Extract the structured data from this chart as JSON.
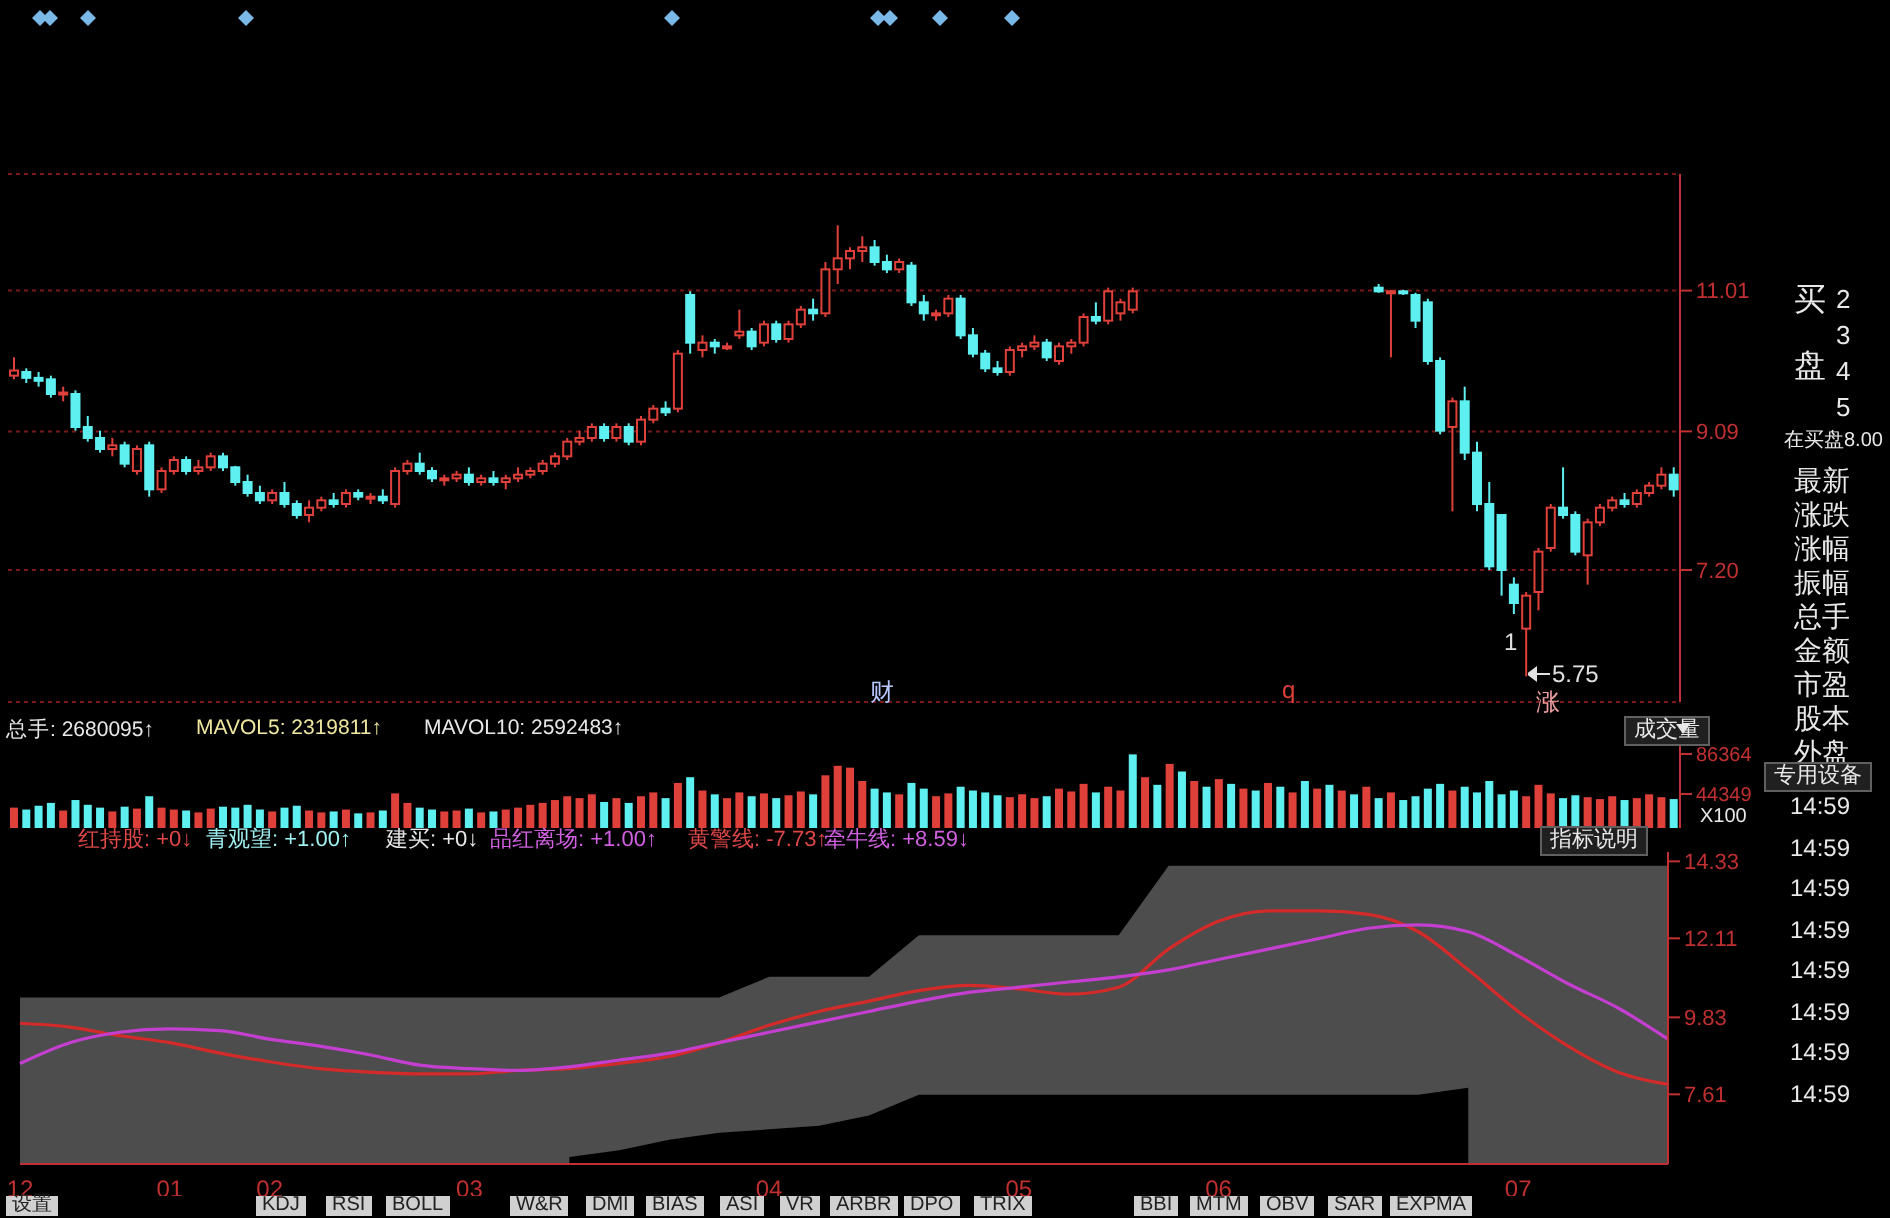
{
  "chart_data": [
    {
      "type": "candlestick",
      "categories": [
        null,
        null,
        null,
        null,
        null,
        null,
        null,
        null,
        null,
        null,
        null,
        null,
        null,
        null,
        null,
        null,
        null,
        null,
        null,
        null,
        null,
        null,
        null,
        null,
        null,
        null,
        null,
        null,
        null,
        null,
        null,
        null,
        null,
        null,
        null,
        null,
        null,
        null,
        null,
        null,
        null,
        null,
        null,
        null,
        null,
        null,
        null,
        null,
        null,
        null,
        null,
        null,
        null,
        null,
        null,
        null,
        null,
        null,
        null,
        null,
        null,
        null,
        null,
        null,
        null,
        null,
        null,
        null,
        null,
        null,
        null,
        null,
        null,
        null,
        null,
        null,
        null,
        null,
        null,
        null,
        null,
        null,
        null,
        null,
        null,
        null,
        null,
        null,
        null,
        null,
        null,
        null,
        null,
        null,
        null,
        null,
        null,
        null,
        null,
        null,
        null,
        null,
        null,
        null,
        null,
        null,
        null,
        null,
        null,
        null,
        null,
        null,
        null,
        null,
        null,
        null,
        null,
        null,
        null,
        null,
        null,
        null,
        null,
        null,
        null,
        null,
        null,
        null,
        null,
        null,
        null,
        null,
        null,
        null,
        null,
        null
      ],
      "ohlc": [
        [
          9.85,
          10.1,
          9.8,
          9.92
        ],
        [
          9.9,
          9.95,
          9.75,
          9.82
        ],
        [
          9.82,
          9.9,
          9.7,
          9.78
        ],
        [
          9.8,
          9.85,
          9.55,
          9.6
        ],
        [
          9.6,
          9.7,
          9.5,
          9.62
        ],
        [
          9.6,
          9.65,
          9.1,
          9.15
        ],
        [
          9.15,
          9.3,
          8.95,
          9.0
        ],
        [
          9.0,
          9.1,
          8.8,
          8.85
        ],
        [
          8.85,
          9.0,
          8.75,
          8.9
        ],
        [
          8.9,
          8.95,
          8.6,
          8.65
        ],
        [
          8.55,
          8.9,
          8.5,
          8.85
        ],
        [
          8.9,
          8.95,
          8.2,
          8.3
        ],
        [
          8.3,
          8.6,
          8.25,
          8.55
        ],
        [
          8.55,
          8.75,
          8.5,
          8.7
        ],
        [
          8.7,
          8.75,
          8.5,
          8.55
        ],
        [
          8.55,
          8.7,
          8.5,
          8.6
        ],
        [
          8.6,
          8.8,
          8.55,
          8.75
        ],
        [
          8.75,
          8.8,
          8.55,
          8.6
        ],
        [
          8.6,
          8.62,
          8.35,
          8.4
        ],
        [
          8.4,
          8.5,
          8.2,
          8.25
        ],
        [
          8.25,
          8.35,
          8.1,
          8.15
        ],
        [
          8.15,
          8.3,
          8.1,
          8.25
        ],
        [
          8.25,
          8.4,
          8.05,
          8.1
        ],
        [
          8.1,
          8.15,
          7.9,
          7.95
        ],
        [
          7.95,
          8.15,
          7.85,
          8.05
        ],
        [
          8.05,
          8.2,
          8.0,
          8.15
        ],
        [
          8.15,
          8.25,
          8.05,
          8.1
        ],
        [
          8.1,
          8.3,
          8.05,
          8.25
        ],
        [
          8.25,
          8.3,
          8.15,
          8.2
        ],
        [
          8.2,
          8.25,
          8.1,
          8.2
        ],
        [
          8.2,
          8.3,
          8.1,
          8.15
        ],
        [
          8.1,
          8.6,
          8.05,
          8.55
        ],
        [
          8.55,
          8.7,
          8.5,
          8.65
        ],
        [
          8.65,
          8.8,
          8.5,
          8.55
        ],
        [
          8.55,
          8.6,
          8.4,
          8.45
        ],
        [
          8.45,
          8.5,
          8.35,
          8.45
        ],
        [
          8.45,
          8.55,
          8.4,
          8.5
        ],
        [
          8.5,
          8.6,
          8.35,
          8.4
        ],
        [
          8.4,
          8.5,
          8.35,
          8.45
        ],
        [
          8.45,
          8.55,
          8.35,
          8.4
        ],
        [
          8.4,
          8.5,
          8.3,
          8.45
        ],
        [
          8.45,
          8.6,
          8.4,
          8.5
        ],
        [
          8.5,
          8.6,
          8.45,
          8.55
        ],
        [
          8.55,
          8.7,
          8.5,
          8.65
        ],
        [
          8.65,
          8.8,
          8.6,
          8.75
        ],
        [
          8.75,
          9.0,
          8.7,
          8.95
        ],
        [
          8.95,
          9.1,
          8.9,
          9.0
        ],
        [
          9.0,
          9.2,
          8.95,
          9.15
        ],
        [
          9.15,
          9.2,
          8.95,
          9.0
        ],
        [
          9.0,
          9.2,
          8.95,
          9.15
        ],
        [
          9.15,
          9.2,
          8.9,
          8.95
        ],
        [
          8.95,
          9.3,
          8.9,
          9.25
        ],
        [
          9.25,
          9.45,
          9.2,
          9.4
        ],
        [
          9.4,
          9.5,
          9.3,
          9.35
        ],
        [
          9.4,
          10.2,
          9.35,
          10.15
        ],
        [
          10.95,
          11.0,
          10.15,
          10.3
        ],
        [
          10.2,
          10.4,
          10.1,
          10.3
        ],
        [
          10.3,
          10.35,
          10.15,
          10.25
        ],
        [
          10.25,
          10.3,
          10.2,
          10.25
        ],
        [
          10.4,
          10.75,
          10.35,
          10.45
        ],
        [
          10.45,
          10.5,
          10.2,
          10.25
        ],
        [
          10.3,
          10.6,
          10.25,
          10.55
        ],
        [
          10.55,
          10.6,
          10.3,
          10.35
        ],
        [
          10.35,
          10.6,
          10.3,
          10.55
        ],
        [
          10.55,
          10.8,
          10.5,
          10.75
        ],
        [
          10.75,
          10.9,
          10.6,
          10.7
        ],
        [
          10.7,
          11.4,
          10.65,
          11.3
        ],
        [
          11.3,
          11.9,
          11.1,
          11.45
        ],
        [
          11.45,
          11.6,
          11.3,
          11.55
        ],
        [
          11.55,
          11.75,
          11.4,
          11.6
        ],
        [
          11.6,
          11.7,
          11.35,
          11.4
        ],
        [
          11.4,
          11.5,
          11.25,
          11.3
        ],
        [
          11.3,
          11.45,
          11.25,
          11.4
        ],
        [
          11.35,
          11.4,
          10.8,
          10.85
        ],
        [
          10.85,
          10.95,
          10.6,
          10.7
        ],
        [
          10.7,
          10.75,
          10.6,
          10.7
        ],
        [
          10.7,
          10.95,
          10.65,
          10.9
        ],
        [
          10.9,
          10.95,
          10.35,
          10.4
        ],
        [
          10.4,
          10.5,
          10.1,
          10.15
        ],
        [
          10.15,
          10.2,
          9.9,
          9.95
        ],
        [
          9.95,
          10.05,
          9.85,
          9.9
        ],
        [
          9.9,
          10.25,
          9.85,
          10.2
        ],
        [
          10.2,
          10.3,
          10.1,
          10.25
        ],
        [
          10.25,
          10.4,
          10.2,
          10.3
        ],
        [
          10.3,
          10.35,
          10.05,
          10.1
        ],
        [
          10.05,
          10.3,
          10.0,
          10.25
        ],
        [
          10.25,
          10.35,
          10.15,
          10.3
        ],
        [
          10.3,
          10.7,
          10.25,
          10.65
        ],
        [
          10.65,
          10.85,
          10.55,
          10.6
        ],
        [
          10.6,
          11.05,
          10.55,
          11.0
        ],
        [
          10.7,
          10.9,
          10.6,
          10.85
        ],
        [
          10.75,
          11.05,
          10.7,
          11.0
        ],
        null,
        null,
        null,
        null,
        null,
        null,
        null,
        null,
        null,
        null,
        null,
        null,
        null,
        null,
        null,
        null,
        null,
        null,
        null,
        [
          11.05,
          11.1,
          10.98,
          11.0
        ],
        [
          10.98,
          11.02,
          10.1,
          11.0
        ],
        [
          11.0,
          11.02,
          10.95,
          10.98
        ],
        [
          10.95,
          10.98,
          10.5,
          10.6
        ],
        [
          10.85,
          10.9,
          10.0,
          10.05
        ],
        [
          10.05,
          10.1,
          9.05,
          9.1
        ],
        [
          9.15,
          9.55,
          8.0,
          9.5
        ],
        [
          9.5,
          9.7,
          8.7,
          8.8
        ],
        [
          8.8,
          8.95,
          8.0,
          8.1
        ],
        [
          8.1,
          8.4,
          7.2,
          7.25
        ],
        [
          7.95,
          7.95,
          6.85,
          7.2
        ],
        [
          7.0,
          7.1,
          6.6,
          6.75
        ],
        [
          6.4,
          6.9,
          5.75,
          6.85
        ],
        [
          6.9,
          7.5,
          6.65,
          7.45
        ],
        [
          7.5,
          8.1,
          7.45,
          8.05
        ],
        [
          8.05,
          8.6,
          7.9,
          7.95
        ],
        [
          7.95,
          8.0,
          7.4,
          7.45
        ],
        [
          7.4,
          7.9,
          7.0,
          7.85
        ],
        [
          7.85,
          8.1,
          7.8,
          8.05
        ],
        [
          8.05,
          8.2,
          8.0,
          8.15
        ],
        [
          8.15,
          8.25,
          8.05,
          8.1
        ],
        [
          8.1,
          8.3,
          8.05,
          8.25
        ],
        [
          8.25,
          8.4,
          8.2,
          8.35
        ],
        [
          8.35,
          8.6,
          8.3,
          8.5
        ],
        [
          8.5,
          8.6,
          8.2,
          8.3
        ]
      ],
      "colors": [
        "#e0403a",
        "#5ef0f0",
        "#5ef0f0",
        "#5ef0f0",
        "#e0403a",
        "#5ef0f0",
        "#5ef0f0",
        "#5ef0f0",
        "#e0403a",
        "#5ef0f0",
        "#e0403a",
        "#5ef0f0",
        "#e0403a",
        "#e0403a",
        "#5ef0f0",
        "#e0403a",
        "#e0403a",
        "#5ef0f0",
        "#5ef0f0",
        "#5ef0f0",
        "#5ef0f0",
        "#e0403a",
        "#5ef0f0",
        "#5ef0f0",
        "#e0403a",
        "#e0403a",
        "#5ef0f0",
        "#e0403a",
        "#5ef0f0",
        "#e0403a",
        "#5ef0f0",
        "#e0403a",
        "#e0403a",
        "#5ef0f0",
        "#5ef0f0",
        "#e0403a",
        "#e0403a",
        "#5ef0f0",
        "#e0403a",
        "#5ef0f0",
        "#e0403a",
        "#e0403a",
        "#e0403a",
        "#e0403a",
        "#e0403a",
        "#e0403a",
        "#e0403a",
        "#e0403a",
        "#5ef0f0",
        "#e0403a",
        "#5ef0f0",
        "#e0403a",
        "#e0403a",
        "#5ef0f0",
        "#e0403a",
        "#5ef0f0",
        "#e0403a",
        "#5ef0f0",
        "#e0403a",
        "#e0403a",
        "#5ef0f0",
        "#e0403a",
        "#5ef0f0",
        "#e0403a",
        "#e0403a",
        "#5ef0f0",
        "#e0403a",
        "#e0403a",
        "#e0403a",
        "#e0403a",
        "#5ef0f0",
        "#5ef0f0",
        "#e0403a",
        "#5ef0f0",
        "#5ef0f0",
        "#e0403a",
        "#e0403a",
        "#5ef0f0",
        "#5ef0f0",
        "#5ef0f0",
        "#5ef0f0",
        "#e0403a",
        "#e0403a",
        "#e0403a",
        "#5ef0f0",
        "#e0403a",
        "#e0403a",
        "#e0403a",
        "#5ef0f0",
        "#e0403a",
        "#e0403a",
        "#e0403a",
        null,
        null,
        null,
        null,
        null,
        null,
        null,
        null,
        null,
        null,
        null,
        null,
        null,
        null,
        null,
        null,
        null,
        null,
        null,
        "#5ef0f0",
        "#e0403a",
        "#5ef0f0",
        "#5ef0f0",
        "#5ef0f0",
        "#5ef0f0",
        "#e0403a",
        "#5ef0f0",
        "#5ef0f0",
        "#5ef0f0",
        "#5ef0f0",
        "#5ef0f0",
        "#e0403a",
        "#e0403a",
        "#e0403a",
        "#5ef0f0",
        "#5ef0f0",
        "#e0403a",
        "#e0403a",
        "#e0403a",
        "#5ef0f0",
        "#e0403a",
        "#e0403a",
        "#e0403a",
        "#5ef0f0"
      ],
      "ylim": [
        5.4,
        12.6
      ],
      "yticks": [
        {
          "value": 7.2,
          "label": "7.20"
        },
        9.09,
        11.01
      ],
      "grid": "y",
      "tick_labels": "y",
      "annotations": [
        "1",
        "5.75",
        "财",
        "q",
        "涨"
      ]
    },
    {
      "type": "bar",
      "categories": [
        null,
        null,
        null,
        null,
        null,
        null,
        null,
        null,
        null,
        null,
        null,
        null,
        null,
        null,
        null,
        null,
        null,
        null,
        null,
        null,
        null,
        null,
        null,
        null,
        null,
        null,
        null,
        null,
        null,
        null,
        null,
        null,
        null,
        null,
        null,
        null,
        null,
        null,
        null,
        null,
        null,
        null,
        null,
        null,
        null,
        null,
        null,
        null,
        null,
        null,
        null,
        null,
        null,
        null,
        null,
        null,
        null,
        null,
        null,
        null,
        null,
        null,
        null,
        null,
        null,
        null,
        null,
        null,
        null,
        null,
        null,
        null,
        null,
        null,
        null,
        null,
        null,
        null,
        null,
        null,
        null,
        null,
        null,
        null,
        null,
        null,
        null,
        null,
        null,
        null,
        null,
        null,
        null,
        null,
        null,
        null,
        null,
        null,
        null,
        null,
        null,
        null,
        null,
        null,
        null,
        null,
        null,
        null,
        null,
        null,
        null,
        null,
        null,
        null,
        null,
        null,
        null,
        null,
        null,
        null,
        null,
        null,
        null,
        null,
        null,
        null,
        null,
        null,
        null,
        null,
        null,
        null,
        null,
        null,
        null,
        null
      ],
      "values": [
        30000,
        28000,
        32000,
        35000,
        27000,
        38000,
        33000,
        30000,
        26000,
        31000,
        29000,
        42000,
        30000,
        28000,
        27000,
        25000,
        29000,
        31000,
        30000,
        33000,
        28000,
        26000,
        30000,
        32000,
        27000,
        25000,
        26000,
        28000,
        24000,
        25000,
        27000,
        45000,
        35000,
        30000,
        28000,
        26000,
        27000,
        29000,
        25000,
        26000,
        28000,
        30000,
        33000,
        35000,
        38000,
        42000,
        40000,
        44000,
        36000,
        40000,
        35000,
        42000,
        46000,
        40000,
        56000,
        62000,
        48000,
        44000,
        40000,
        46000,
        42000,
        45000,
        40000,
        43000,
        47000,
        44000,
        64000,
        74000,
        72000,
        58000,
        50000,
        46000,
        44000,
        56000,
        50000,
        42000,
        45000,
        52000,
        48000,
        46000,
        43000,
        41000,
        44000,
        40000,
        42000,
        50000,
        47000,
        55000,
        46000,
        52000,
        48000,
        86000,
        62000,
        54000,
        76000,
        68000,
        58000,
        52000,
        60000,
        55000,
        50000,
        48000,
        56000,
        52000,
        46000,
        58000,
        50000,
        54000,
        48000,
        44000,
        52000,
        40000,
        46000,
        38000,
        42000,
        50000,
        55000,
        48000,
        52000,
        46000,
        58000,
        44000,
        48000,
        42000,
        54000,
        45000,
        40000,
        43000,
        41000,
        39000,
        42000,
        38000,
        40000,
        44000,
        41000,
        39000
      ],
      "colors": [
        "#e0403a",
        "#5ef0f0",
        "#5ef0f0",
        "#5ef0f0",
        "#e0403a",
        "#5ef0f0",
        "#5ef0f0",
        "#5ef0f0",
        "#e0403a",
        "#5ef0f0",
        "#e0403a",
        "#5ef0f0",
        "#e0403a",
        "#e0403a",
        "#5ef0f0",
        "#e0403a",
        "#e0403a",
        "#5ef0f0",
        "#5ef0f0",
        "#5ef0f0",
        "#5ef0f0",
        "#e0403a",
        "#5ef0f0",
        "#5ef0f0",
        "#e0403a",
        "#e0403a",
        "#5ef0f0",
        "#e0403a",
        "#5ef0f0",
        "#e0403a",
        "#5ef0f0",
        "#e0403a",
        "#e0403a",
        "#5ef0f0",
        "#5ef0f0",
        "#e0403a",
        "#e0403a",
        "#5ef0f0",
        "#e0403a",
        "#5ef0f0",
        "#e0403a",
        "#e0403a",
        "#e0403a",
        "#e0403a",
        "#e0403a",
        "#e0403a",
        "#e0403a",
        "#e0403a",
        "#5ef0f0",
        "#e0403a",
        "#5ef0f0",
        "#e0403a",
        "#e0403a",
        "#5ef0f0",
        "#e0403a",
        "#5ef0f0",
        "#e0403a",
        "#5ef0f0",
        "#e0403a",
        "#e0403a",
        "#5ef0f0",
        "#e0403a",
        "#5ef0f0",
        "#e0403a",
        "#e0403a",
        "#5ef0f0",
        "#e0403a",
        "#e0403a",
        "#e0403a",
        "#e0403a",
        "#5ef0f0",
        "#5ef0f0",
        "#e0403a",
        "#5ef0f0",
        "#5ef0f0",
        "#e0403a",
        "#e0403a",
        "#5ef0f0",
        "#5ef0f0",
        "#5ef0f0",
        "#5ef0f0",
        "#e0403a",
        "#e0403a",
        "#e0403a",
        "#5ef0f0",
        "#e0403a",
        "#e0403a",
        "#e0403a",
        "#5ef0f0",
        "#e0403a",
        "#e0403a",
        "#5ef0f0",
        "#e0403a",
        "#5ef0f0",
        "#e0403a",
        "#5ef0f0",
        "#e0403a",
        "#5ef0f0",
        "#e0403a",
        "#5ef0f0",
        "#e0403a",
        "#5ef0f0",
        "#e0403a",
        "#5ef0f0",
        "#e0403a",
        "#5ef0f0",
        "#e0403a",
        "#5ef0f0",
        "#e0403a",
        "#5ef0f0",
        "#e0403a",
        "#5ef0f0",
        "#e0403a",
        "#5ef0f0",
        "#5ef0f0",
        "#5ef0f0",
        "#5ef0f0",
        "#e0403a",
        "#5ef0f0",
        "#5ef0f0",
        "#5ef0f0",
        "#5ef0f0",
        "#5ef0f0",
        "#e0403a",
        "#e0403a",
        "#e0403a",
        "#5ef0f0",
        "#5ef0f0",
        "#e0403a",
        "#e0403a",
        "#e0403a",
        "#5ef0f0",
        "#e0403a",
        "#e0403a",
        "#e0403a",
        "#5ef0f0"
      ],
      "ylim": [
        8600,
        96900
      ],
      "yticks": [
        44349,
        86364
      ],
      "ylabel": "X100",
      "tick_labels": "y",
      "annotations": [
        "总手: 2680095↑",
        "MAVOL5: 2319811↑",
        "MAVOL10: 2592483↑"
      ]
    },
    {
      "type": "line",
      "categories": [
        "12",
        null,
        null,
        "01",
        null,
        "02",
        null,
        null,
        null,
        "03",
        null,
        null,
        null,
        null,
        null,
        "04",
        null,
        null,
        null,
        null,
        "05",
        null,
        null,
        null,
        "06",
        null,
        null,
        null,
        null,
        null,
        "07",
        null,
        null,
        null
      ],
      "series": [
        {
          "type": "area",
          "color": "#4d4d4d",
          "values": [
            10.4,
            10.4,
            10.4,
            10.4,
            10.4,
            10.4,
            10.4,
            10.4,
            10.4,
            10.4,
            10.4,
            10.4,
            10.4,
            10.4,
            10.4,
            11.0,
            11.0,
            11.0,
            12.2,
            12.2,
            12.2,
            12.2,
            12.2,
            14.2,
            14.2,
            14.2,
            14.2,
            14.2,
            14.2,
            14.2,
            14.2,
            14.2,
            14.2,
            14.2
          ]
        },
        {
          "type": "area",
          "color": "#000000",
          "values": [
            null,
            null,
            null,
            null,
            null,
            null,
            null,
            null,
            null,
            null,
            null,
            5.8,
            6.0,
            6.3,
            6.5,
            6.6,
            6.7,
            7.0,
            7.6,
            7.6,
            7.6,
            7.6,
            7.6,
            7.6,
            7.6,
            7.6,
            7.6,
            7.6,
            7.6,
            7.8,
            null,
            null,
            null,
            null
          ]
        },
        {
          "color": "#d42a2a",
          "values": [
            9.66,
            9.55,
            9.3,
            9.1,
            8.8,
            8.55,
            8.35,
            8.25,
            8.2,
            8.2,
            8.3,
            8.35,
            8.5,
            8.7,
            9.1,
            9.6,
            10.0,
            10.3,
            10.6,
            10.75,
            10.65,
            10.5,
            10.7,
            11.8,
            12.6,
            12.9,
            12.9,
            12.8,
            12.3,
            11.2,
            10.0,
            9.0,
            8.25,
            7.9
          ]
        },
        {
          "color": "#c43fd0",
          "values": [
            8.5,
            9.1,
            9.4,
            9.5,
            9.45,
            9.2,
            9.0,
            8.75,
            8.45,
            8.35,
            8.3,
            8.4,
            8.6,
            8.8,
            9.1,
            9.4,
            9.7,
            10.0,
            10.3,
            10.55,
            10.7,
            10.85,
            11.0,
            11.2,
            11.5,
            11.8,
            12.1,
            12.4,
            12.5,
            12.3,
            11.6,
            10.8,
            10.1,
            9.2
          ]
        }
      ],
      "ylim": [
        5.6,
        14.6
      ],
      "yticks": [
        7.61,
        9.83,
        12.11,
        14.33
      ],
      "annotations": [
        "红持股: +0↓",
        "青观望: +1.00↑",
        "建买: +0↓",
        "品红离场: +1.00↑",
        "黄警线: -7.73↑",
        "牵牛线: +8.59↓"
      ]
    },
    {
      "type": "other",
      "annotations": [
        "买",
        "盘",
        "2",
        "3",
        "4",
        "5",
        "在买盘8.00",
        "最新",
        "涨跌",
        "涨幅",
        "振幅",
        "总手",
        "金额",
        "市盈",
        "股本",
        "外盘",
        "成交量",
        "专用设备",
        "指标说明",
        "14:59",
        "14:59",
        "14:59",
        "14:59",
        "14:59",
        "14:59",
        "14:59",
        "14:59",
        "设置",
        "KDJ",
        "RSI",
        "BOLL",
        "W&R",
        "DMI",
        "BIAS",
        "ASI",
        "VR",
        "ARBR",
        "DPO",
        "TRIX",
        "BBI",
        "MTM",
        "OBV",
        "SAR",
        "EXPMA"
      ]
    }
  ]
}
